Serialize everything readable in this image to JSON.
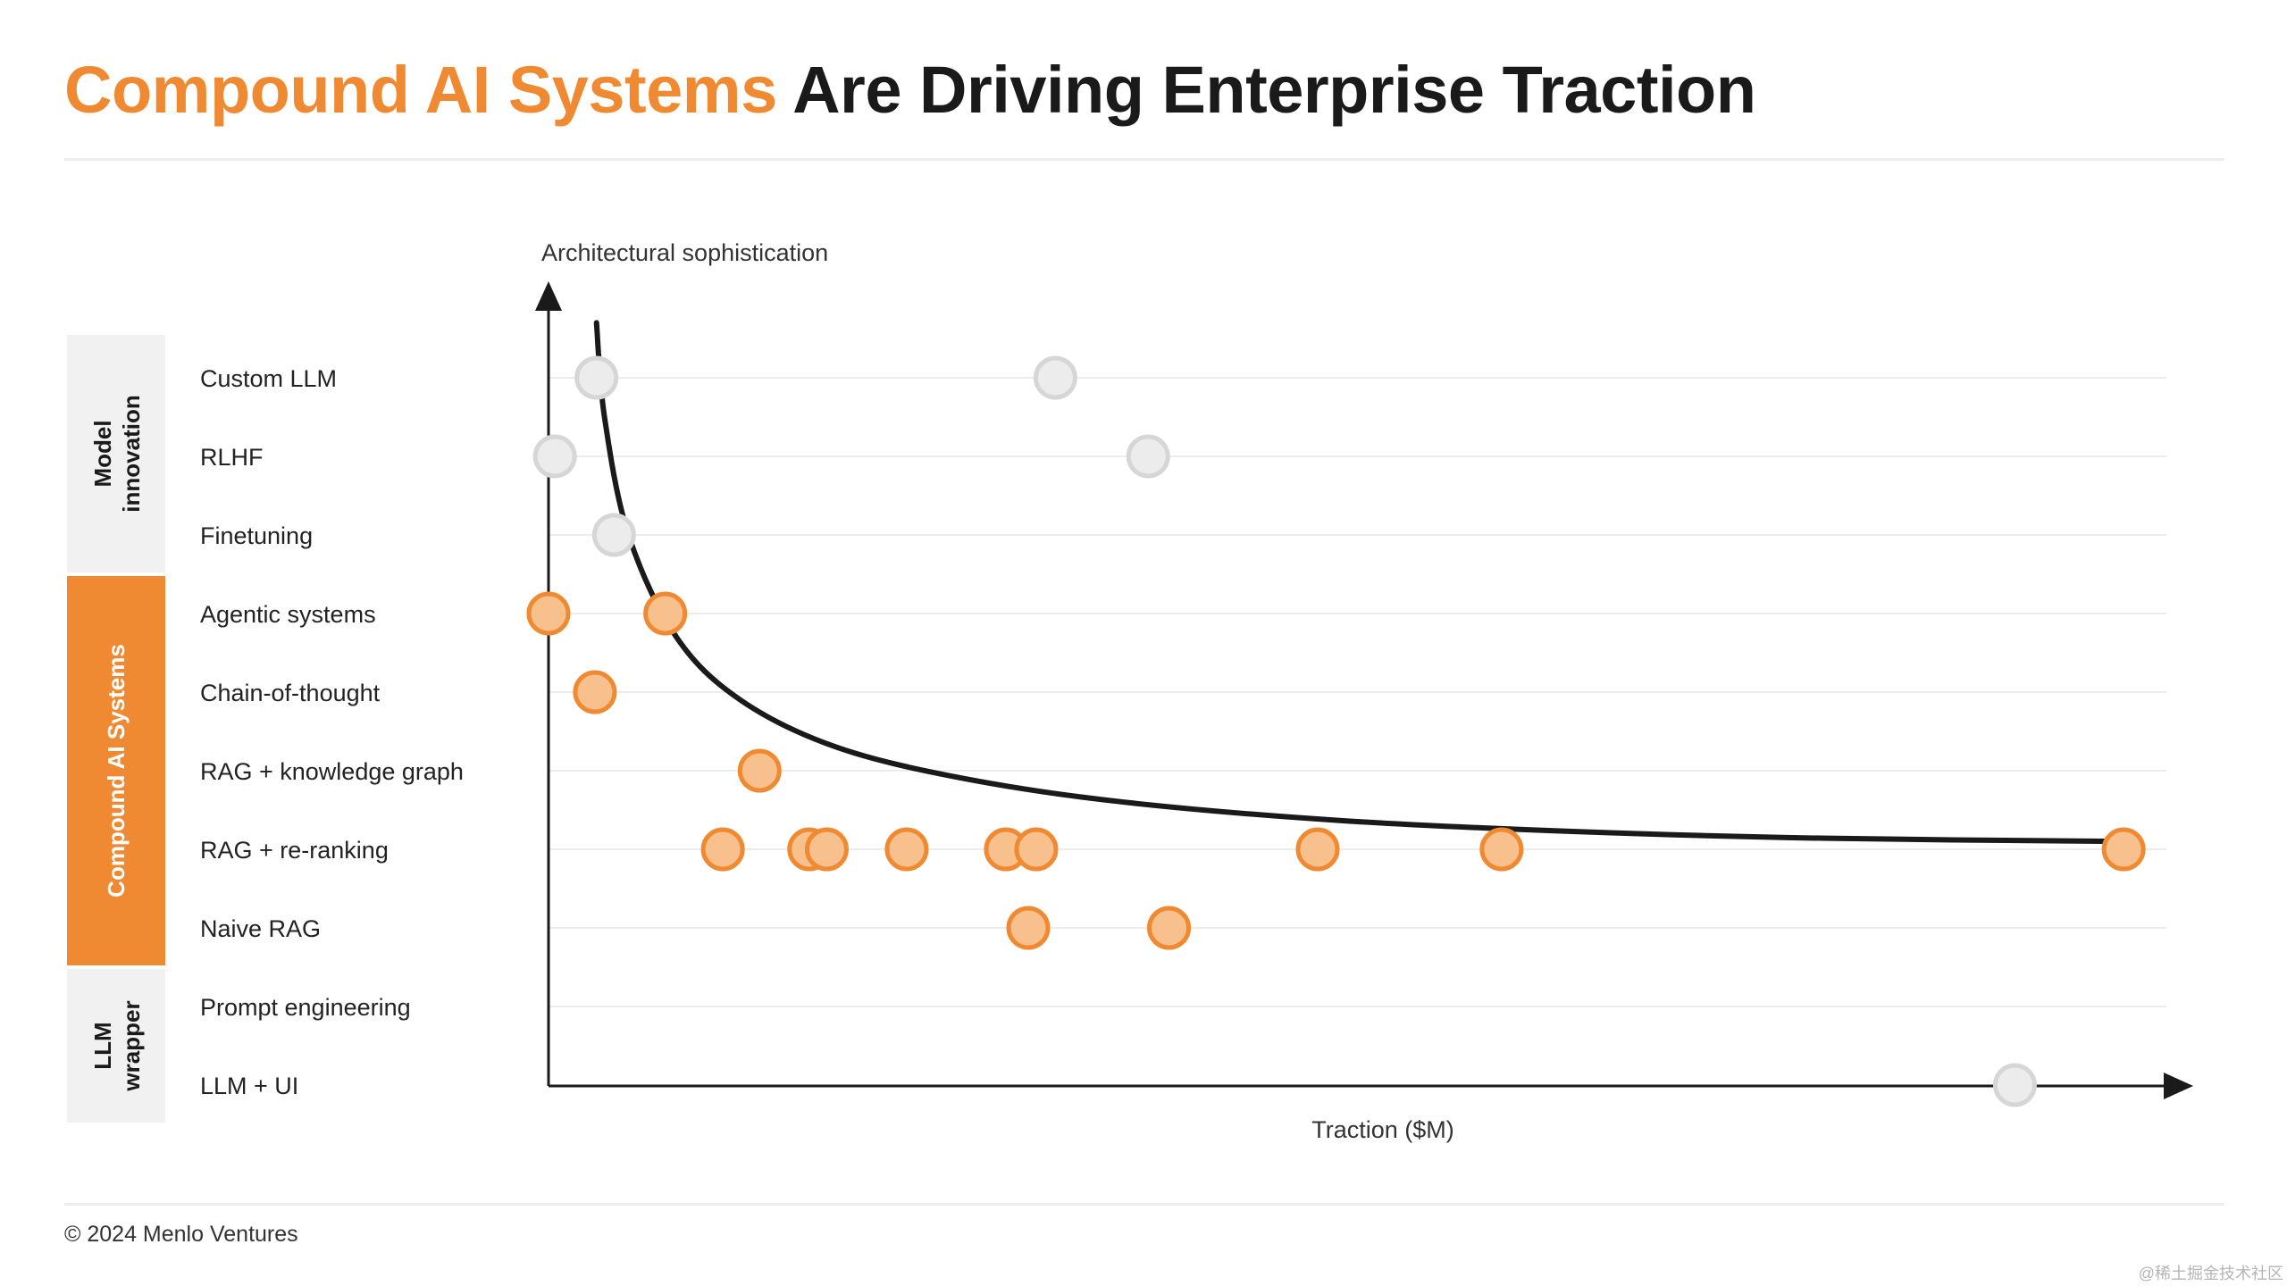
{
  "title": {
    "accent": "Compound AI Systems",
    "rest": "Are Driving Enterprise Traction"
  },
  "footer": "© 2024 Menlo Ventures",
  "watermark": "@稀土掘金技术社区",
  "colors": {
    "accent": "#ef8a33",
    "accent_fill": "#f7c08d",
    "gray_fill": "#ececec",
    "gray_stroke": "#d6d6d6",
    "text_dark": "#1a1a1a",
    "group_bg_gray": "#f1f1f1"
  },
  "chart_data": {
    "type": "scatter",
    "ylabel": "Architectural sophistication",
    "xlabel": "Traction ($M)",
    "categories": [
      "Custom LLM",
      "RLHF",
      "Finetuning",
      "Agentic systems",
      "Chain-of-thought",
      "RAG + knowledge graph",
      "RAG + re-ranking",
      "Naive RAG",
      "Prompt engineering",
      "LLM + UI"
    ],
    "groups": [
      {
        "label": "Model innovation",
        "categories": [
          "Custom LLM",
          "RLHF",
          "Finetuning"
        ],
        "style": "gray"
      },
      {
        "label": "Compound AI Systems",
        "categories": [
          "Agentic systems",
          "Chain-of-thought",
          "RAG + knowledge graph",
          "RAG + re-ranking",
          "Naive RAG"
        ],
        "style": "accent"
      },
      {
        "label": "LLM wrapper",
        "categories": [
          "Prompt engineering",
          "LLM + UI"
        ],
        "style": "gray"
      }
    ],
    "xlim": [
      0,
      100
    ],
    "points": [
      {
        "category": "Custom LLM",
        "x": 3,
        "group": "Model innovation"
      },
      {
        "category": "Custom LLM",
        "x": 31.7,
        "group": "Model innovation"
      },
      {
        "category": "RLHF",
        "x": 0.4,
        "group": "Model innovation"
      },
      {
        "category": "RLHF",
        "x": 37.5,
        "group": "Model innovation"
      },
      {
        "category": "Finetuning",
        "x": 4.1,
        "group": "Model innovation"
      },
      {
        "category": "Agentic systems",
        "x": 0,
        "group": "Compound AI Systems"
      },
      {
        "category": "Agentic systems",
        "x": 7.3,
        "group": "Compound AI Systems"
      },
      {
        "category": "Chain-of-thought",
        "x": 2.9,
        "group": "Compound AI Systems"
      },
      {
        "category": "RAG + knowledge graph",
        "x": 13.2,
        "group": "Compound AI Systems"
      },
      {
        "category": "RAG + re-ranking",
        "x": 10.9,
        "group": "Compound AI Systems"
      },
      {
        "category": "RAG + re-ranking",
        "x": 16.3,
        "group": "Compound AI Systems"
      },
      {
        "category": "RAG + re-ranking",
        "x": 17.4,
        "group": "Compound AI Systems"
      },
      {
        "category": "RAG + re-ranking",
        "x": 22.4,
        "group": "Compound AI Systems"
      },
      {
        "category": "RAG + re-ranking",
        "x": 28.6,
        "group": "Compound AI Systems"
      },
      {
        "category": "RAG + re-ranking",
        "x": 30.5,
        "group": "Compound AI Systems"
      },
      {
        "category": "RAG + re-ranking",
        "x": 48.1,
        "group": "Compound AI Systems"
      },
      {
        "category": "RAG + re-ranking",
        "x": 59.6,
        "group": "Compound AI Systems"
      },
      {
        "category": "RAG + re-ranking",
        "x": 98.5,
        "group": "Compound AI Systems"
      },
      {
        "category": "Naive RAG",
        "x": 30,
        "group": "Compound AI Systems"
      },
      {
        "category": "Naive RAG",
        "x": 38.8,
        "group": "Compound AI Systems"
      },
      {
        "category": "LLM + UI",
        "x": 91.7,
        "group": "LLM wrapper"
      }
    ],
    "trend_curve": [
      {
        "x": 3,
        "y": 9.7
      },
      {
        "x": 3.5,
        "y": 8.5
      },
      {
        "x": 5,
        "y": 7.0
      },
      {
        "x": 8,
        "y": 5.7
      },
      {
        "x": 12,
        "y": 4.9
      },
      {
        "x": 18,
        "y": 4.3
      },
      {
        "x": 26,
        "y": 3.9
      },
      {
        "x": 36,
        "y": 3.6
      },
      {
        "x": 50,
        "y": 3.36
      },
      {
        "x": 65,
        "y": 3.22
      },
      {
        "x": 80,
        "y": 3.14
      },
      {
        "x": 98.7,
        "y": 3.1
      }
    ],
    "grid": true
  }
}
